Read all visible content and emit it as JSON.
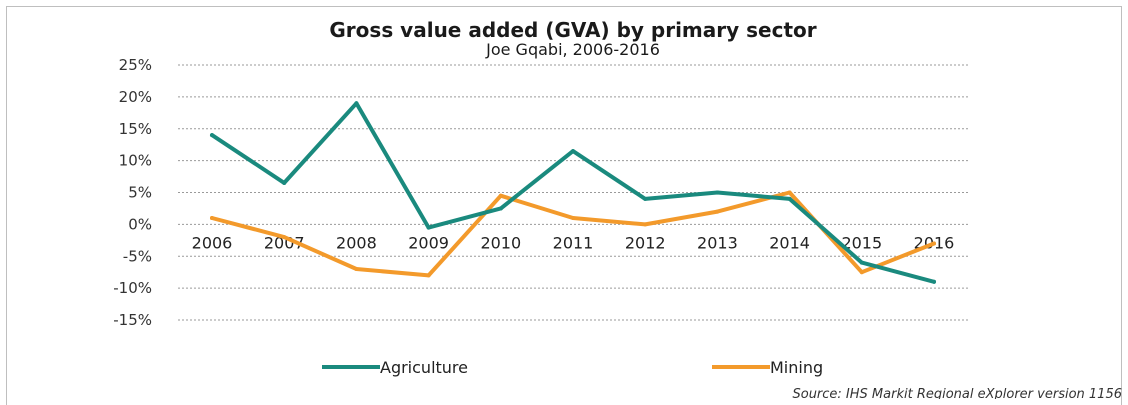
{
  "chart_data": {
    "type": "line",
    "title": "Gross value added (GVA) by primary sector",
    "subtitle": "Joe Gqabi, 2006-2016",
    "categories": [
      "2006",
      "2007",
      "2008",
      "2009",
      "2010",
      "2011",
      "2012",
      "2013",
      "2014",
      "2015",
      "2016"
    ],
    "series": [
      {
        "name": "Agriculture",
        "color": "#1a8a7e",
        "values": [
          14,
          6.5,
          19,
          -0.5,
          2.5,
          11.5,
          4,
          5,
          4,
          -6,
          -9
        ]
      },
      {
        "name": "Mining",
        "color": "#f39a2b",
        "values": [
          1,
          -2,
          -7,
          -8,
          4.5,
          1,
          0,
          2,
          5,
          -7.5,
          -3
        ]
      }
    ],
    "y_ticks": [
      "25%",
      "20%",
      "15%",
      "10%",
      "5%",
      "0%",
      "-5%",
      "-10%",
      "-15%"
    ],
    "ylim": [
      -15,
      25
    ],
    "grid": true,
    "legend_position": "bottom",
    "source": "Source: IHS Markit Regional eXplorer version 1156"
  }
}
